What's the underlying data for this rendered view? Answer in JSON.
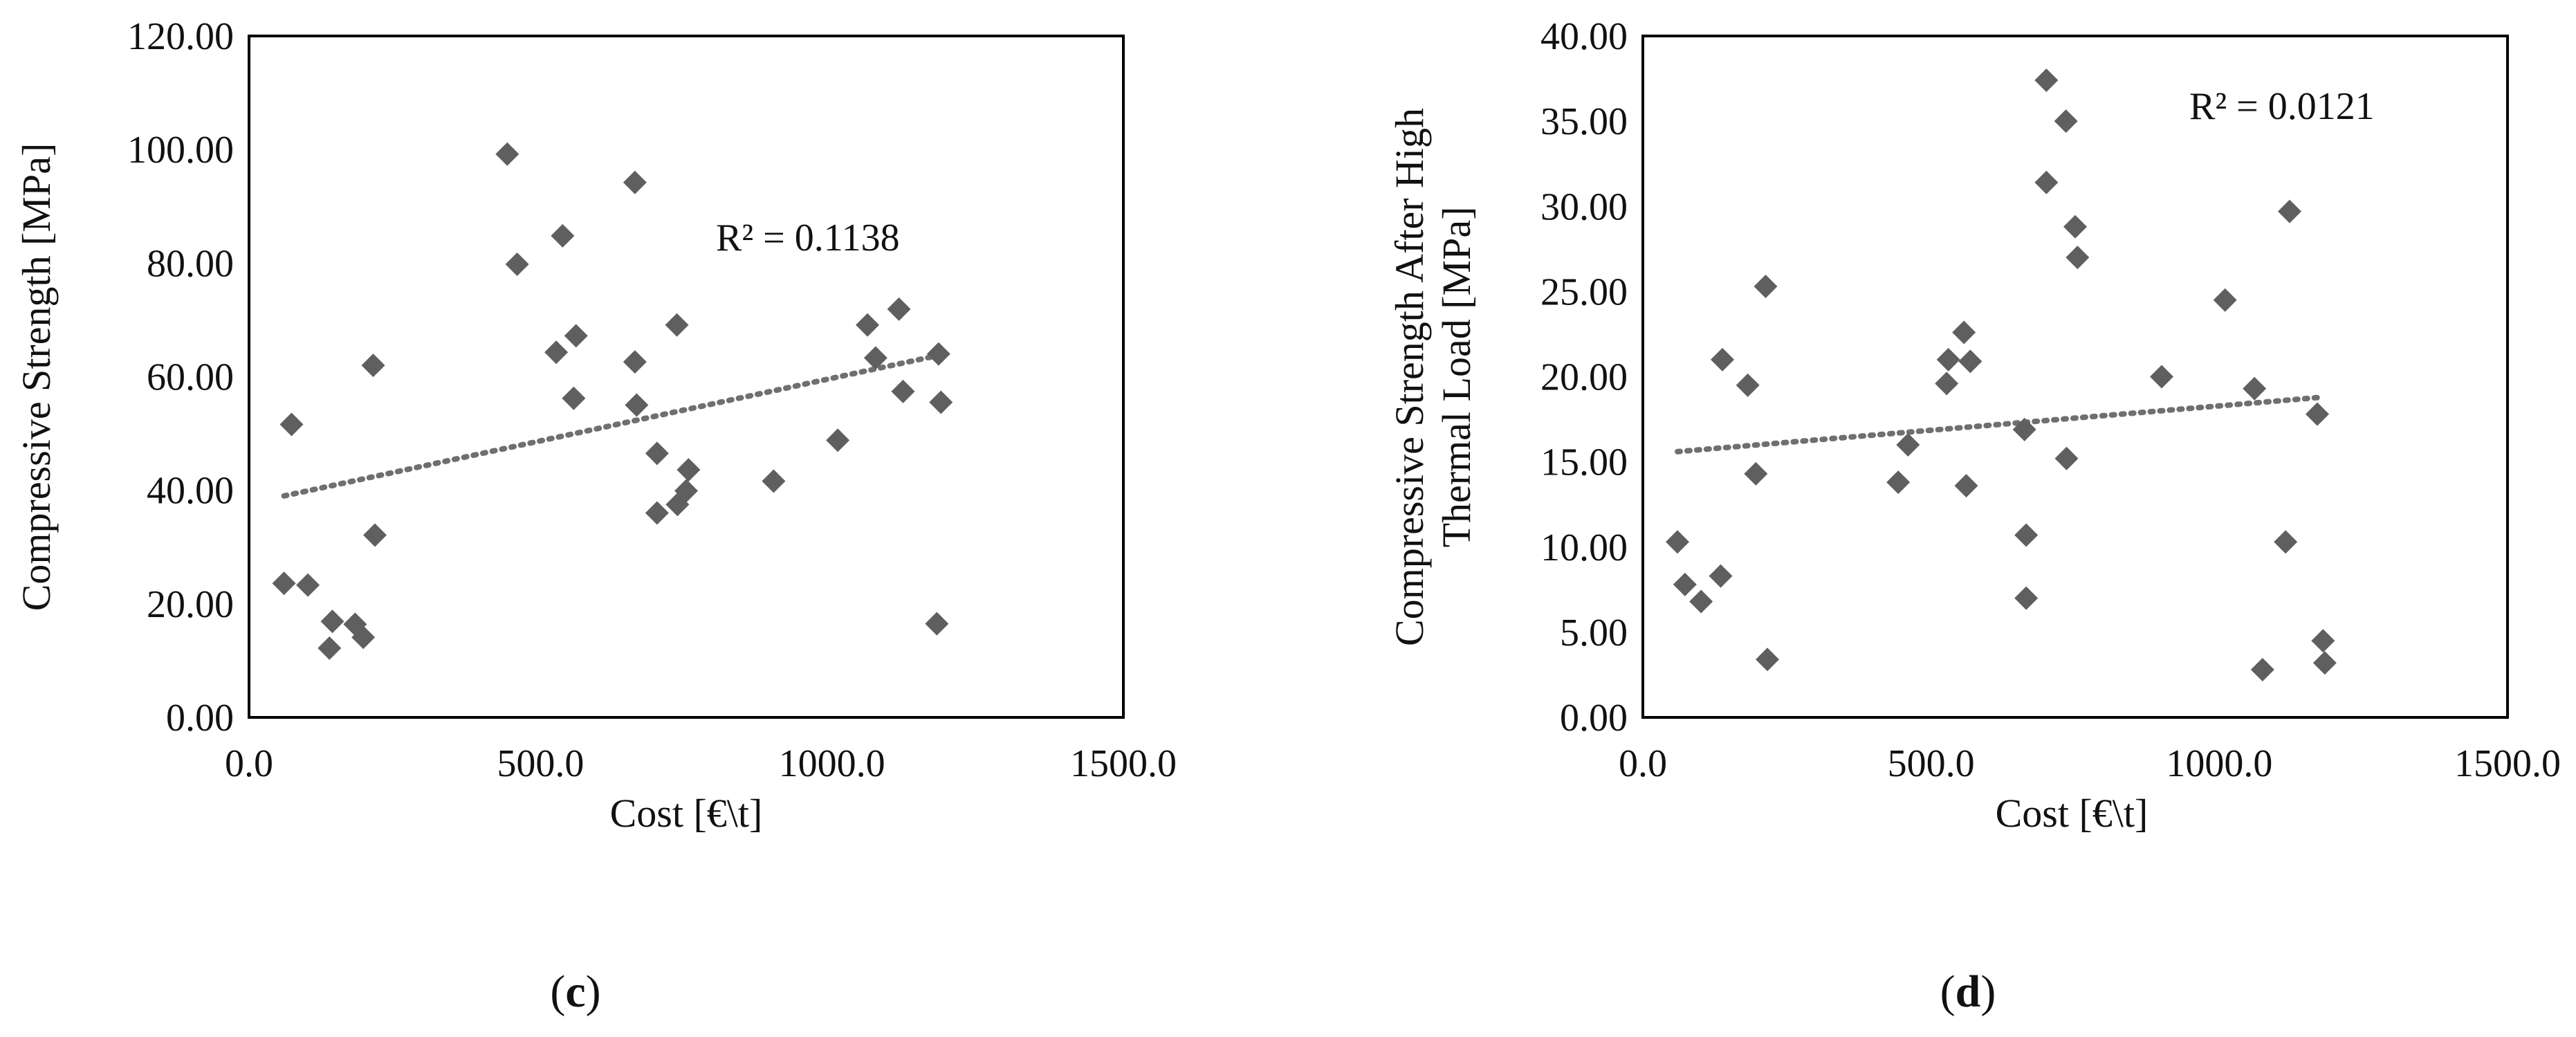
{
  "colors": {
    "marker": "#5f5f5f",
    "trendline": "#6f6f6f",
    "axis": "#000000",
    "text": "#111111"
  },
  "panels": [
    {
      "label_open": "(",
      "label_letter": "c",
      "label_close": ")"
    },
    {
      "label_open": "(",
      "label_letter": "d",
      "label_close": ")"
    }
  ],
  "chart_data": [
    {
      "type": "scatter",
      "xlabel": "Cost [€\\t]",
      "ylabel": "Compressive Strength [MPa]",
      "xlim": [
        0,
        1500
      ],
      "ylim": [
        0,
        120
      ],
      "x_ticks": [
        "0.0",
        "500.0",
        "1000.0",
        "1500.0"
      ],
      "y_ticks": [
        "0.00",
        "20.00",
        "40.00",
        "60.00",
        "80.00",
        "100.00",
        "120.00"
      ],
      "grid": false,
      "r2_label": "R² = 0.1138",
      "trendline": {
        "type": "linear",
        "x": [
          60,
          1185
        ],
        "y": [
          39.0,
          63.8
        ]
      },
      "points": [
        [
          60,
          23.6
        ],
        [
          73,
          51.6
        ],
        [
          101,
          23.3
        ],
        [
          138,
          12.2
        ],
        [
          143,
          16.9
        ],
        [
          182,
          16.4
        ],
        [
          196,
          14.1
        ],
        [
          213,
          62.0
        ],
        [
          216,
          32.1
        ],
        [
          443,
          99.2
        ],
        [
          460,
          79.8
        ],
        [
          527,
          64.3
        ],
        [
          538,
          84.8
        ],
        [
          557,
          56.2
        ],
        [
          561,
          67.2
        ],
        [
          662,
          94.2
        ],
        [
          662,
          62.6
        ],
        [
          665,
          55.0
        ],
        [
          700,
          46.5
        ],
        [
          700,
          36.0
        ],
        [
          734,
          69.1
        ],
        [
          735,
          37.5
        ],
        [
          750,
          39.9
        ],
        [
          754,
          43.6
        ],
        [
          900,
          41.6
        ],
        [
          1010,
          48.8
        ],
        [
          1061,
          69.1
        ],
        [
          1075,
          63.3
        ],
        [
          1115,
          71.9
        ],
        [
          1122,
          57.4
        ],
        [
          1180,
          16.5
        ],
        [
          1183,
          64.0
        ],
        [
          1187,
          55.5
        ]
      ]
    },
    {
      "type": "scatter",
      "xlabel": "Cost [€\\t]",
      "ylabel_lines": [
        "Compressive Strength After High",
        "Thermal Load  [MPa]"
      ],
      "xlim": [
        0,
        1500
      ],
      "ylim": [
        0,
        40
      ],
      "x_ticks": [
        "0.0",
        "500.0",
        "1000.0",
        "1500.0"
      ],
      "y_ticks": [
        "0.00",
        "5.00",
        "10.00",
        "15.00",
        "20.00",
        "25.00",
        "30.00",
        "35.00",
        "40.00"
      ],
      "grid": false,
      "r2_label": "R² = 0.0121",
      "trendline": {
        "type": "linear",
        "x": [
          60,
          1180
        ],
        "y": [
          15.6,
          18.8
        ]
      },
      "points": [
        [
          60,
          10.3
        ],
        [
          73,
          7.8
        ],
        [
          101,
          6.8
        ],
        [
          135,
          8.3
        ],
        [
          138,
          21.0
        ],
        [
          182,
          19.5
        ],
        [
          196,
          14.3
        ],
        [
          213,
          25.3
        ],
        [
          216,
          3.4
        ],
        [
          443,
          13.8
        ],
        [
          460,
          16.0
        ],
        [
          527,
          19.6
        ],
        [
          530,
          21.0
        ],
        [
          557,
          22.6
        ],
        [
          561,
          13.6
        ],
        [
          568,
          20.9
        ],
        [
          662,
          16.9
        ],
        [
          665,
          7.0
        ],
        [
          665,
          10.7
        ],
        [
          700,
          37.4
        ],
        [
          700,
          31.4
        ],
        [
          734,
          35.0
        ],
        [
          735,
          15.2
        ],
        [
          750,
          28.8
        ],
        [
          754,
          27.0
        ],
        [
          900,
          20.0
        ],
        [
          1010,
          24.5
        ],
        [
          1061,
          19.3
        ],
        [
          1075,
          2.8
        ],
        [
          1115,
          10.3
        ],
        [
          1122,
          29.7
        ],
        [
          1170,
          17.8
        ],
        [
          1180,
          4.5
        ],
        [
          1183,
          3.2
        ]
      ]
    }
  ]
}
